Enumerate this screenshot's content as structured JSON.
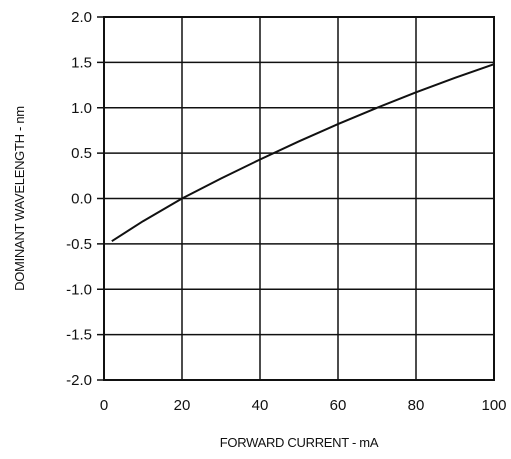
{
  "chart_data": {
    "type": "line",
    "title": "",
    "xlabel": "FORWARD CURRENT - mA",
    "ylabel": "DOMINANT WAVELENGTH - nm",
    "xlim": [
      0,
      100
    ],
    "ylim": [
      -2.0,
      2.0
    ],
    "x_ticks": [
      "0",
      "20",
      "40",
      "60",
      "80",
      "100"
    ],
    "y_ticks": [
      "2.0",
      "1.5",
      "1.0",
      "0.5",
      "0.0",
      "-0.5",
      "-1.0",
      "-1.5",
      "-2.0"
    ],
    "grid": true,
    "series": [
      {
        "x": [
          2,
          10,
          20,
          30,
          40,
          50,
          60,
          70,
          80,
          90,
          100
        ],
        "y": [
          -0.47,
          -0.25,
          0.0,
          0.22,
          0.43,
          0.63,
          0.82,
          1.0,
          1.17,
          1.33,
          1.48
        ]
      }
    ],
    "colors": {
      "line": "#111111",
      "grid": "#111111",
      "background": "#ffffff"
    }
  }
}
